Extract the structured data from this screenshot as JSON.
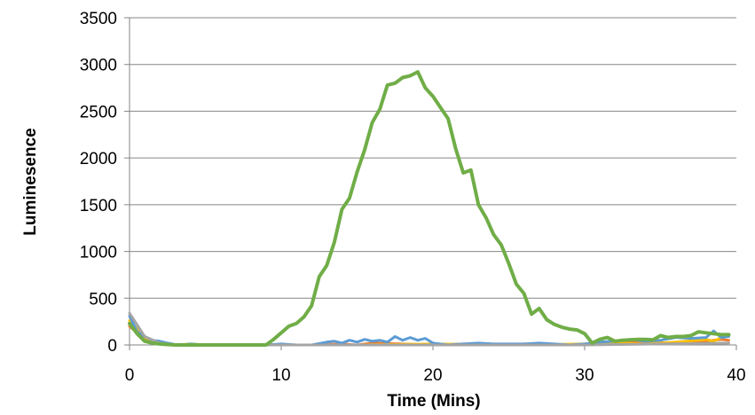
{
  "chart_data": {
    "type": "line",
    "title": "",
    "xlabel": "Time (Mins)",
    "ylabel": "Luminesence",
    "xlim": [
      0,
      40
    ],
    "ylim": [
      0,
      3500
    ],
    "xticks": [
      0,
      10,
      20,
      30,
      40
    ],
    "yticks": [
      0,
      500,
      1000,
      1500,
      2000,
      2500,
      3000,
      3500
    ],
    "grid": "horizontal",
    "legend": "none",
    "series": [
      {
        "color": "#70ad47",
        "x": [
          0,
          0.5,
          1,
          1.5,
          2,
          2.5,
          3,
          4,
          5,
          6,
          7,
          8,
          9,
          9.5,
          10,
          10.5,
          11,
          11.5,
          12,
          12.5,
          13,
          13.5,
          14,
          14.5,
          15,
          15.5,
          16,
          16.5,
          17,
          17.5,
          18,
          18.5,
          19,
          19.5,
          20,
          20.5,
          21,
          21.5,
          22,
          22.5,
          23,
          23.5,
          24,
          24.5,
          25,
          25.5,
          26,
          26.5,
          27,
          27.5,
          28,
          28.5,
          29,
          29.5,
          30,
          30.5,
          31,
          31.5,
          32,
          32.5,
          33,
          33.5,
          34,
          34.5,
          35,
          35.5,
          36,
          36.5,
          37,
          37.5,
          38,
          38.5,
          39,
          39.5
        ],
        "values": [
          230,
          120,
          40,
          20,
          10,
          5,
          0,
          0,
          0,
          0,
          0,
          0,
          0,
          60,
          130,
          200,
          230,
          300,
          420,
          730,
          850,
          1100,
          1450,
          1570,
          1850,
          2090,
          2380,
          2520,
          2780,
          2800,
          2860,
          2880,
          2920,
          2750,
          2660,
          2540,
          2420,
          2100,
          1840,
          1870,
          1500,
          1360,
          1180,
          1070,
          870,
          650,
          550,
          330,
          390,
          270,
          220,
          190,
          170,
          160,
          120,
          20,
          60,
          80,
          40,
          50,
          55,
          60,
          60,
          55,
          100,
          80,
          90,
          90,
          100,
          140,
          130,
          120,
          110,
          110
        ]
      },
      {
        "color": "#5b9bd5",
        "x": [
          0,
          0.5,
          1,
          1.5,
          2,
          2.5,
          3,
          3.5,
          4,
          5,
          6,
          7,
          8,
          9,
          10,
          11,
          12,
          13,
          13.5,
          14,
          14.5,
          15,
          15.5,
          16,
          16.5,
          17,
          17.5,
          18,
          18.5,
          19,
          19.5,
          20,
          21,
          22,
          23,
          24,
          25,
          26,
          27,
          28,
          29,
          30,
          31,
          32,
          33,
          34,
          35,
          36,
          37,
          38,
          38.5,
          39,
          39.5
        ],
        "values": [
          310,
          140,
          90,
          50,
          40,
          20,
          5,
          0,
          10,
          0,
          0,
          0,
          0,
          0,
          10,
          0,
          0,
          30,
          40,
          20,
          50,
          30,
          60,
          40,
          50,
          30,
          90,
          50,
          80,
          50,
          70,
          20,
          0,
          10,
          20,
          10,
          10,
          10,
          20,
          10,
          0,
          10,
          30,
          40,
          60,
          40,
          50,
          80,
          70,
          80,
          150,
          80,
          90
        ]
      },
      {
        "color": "#ed7d31",
        "x": [
          0,
          1,
          2,
          3,
          4,
          5,
          10,
          12,
          14,
          15,
          16,
          18,
          20,
          22,
          24,
          26,
          28,
          30,
          32,
          34,
          36,
          38,
          39,
          39.5
        ],
        "values": [
          200,
          60,
          10,
          0,
          0,
          0,
          0,
          0,
          10,
          0,
          20,
          10,
          0,
          10,
          0,
          10,
          0,
          10,
          20,
          30,
          20,
          40,
          60,
          50
        ]
      },
      {
        "color": "#ffc000",
        "x": [
          0,
          1,
          2,
          3,
          4,
          5,
          6,
          10,
          15,
          20,
          25,
          30,
          32,
          34,
          36,
          38,
          38.5,
          39,
          39.5
        ],
        "values": [
          260,
          80,
          20,
          0,
          10,
          0,
          5,
          0,
          0,
          10,
          0,
          10,
          20,
          10,
          30,
          60,
          40,
          80,
          110
        ]
      },
      {
        "color": "#a5a5a5",
        "x": [
          0,
          1,
          2,
          3,
          5,
          10,
          20,
          30,
          35,
          39.5
        ],
        "values": [
          340,
          90,
          20,
          0,
          0,
          0,
          0,
          0,
          10,
          20
        ]
      }
    ]
  }
}
